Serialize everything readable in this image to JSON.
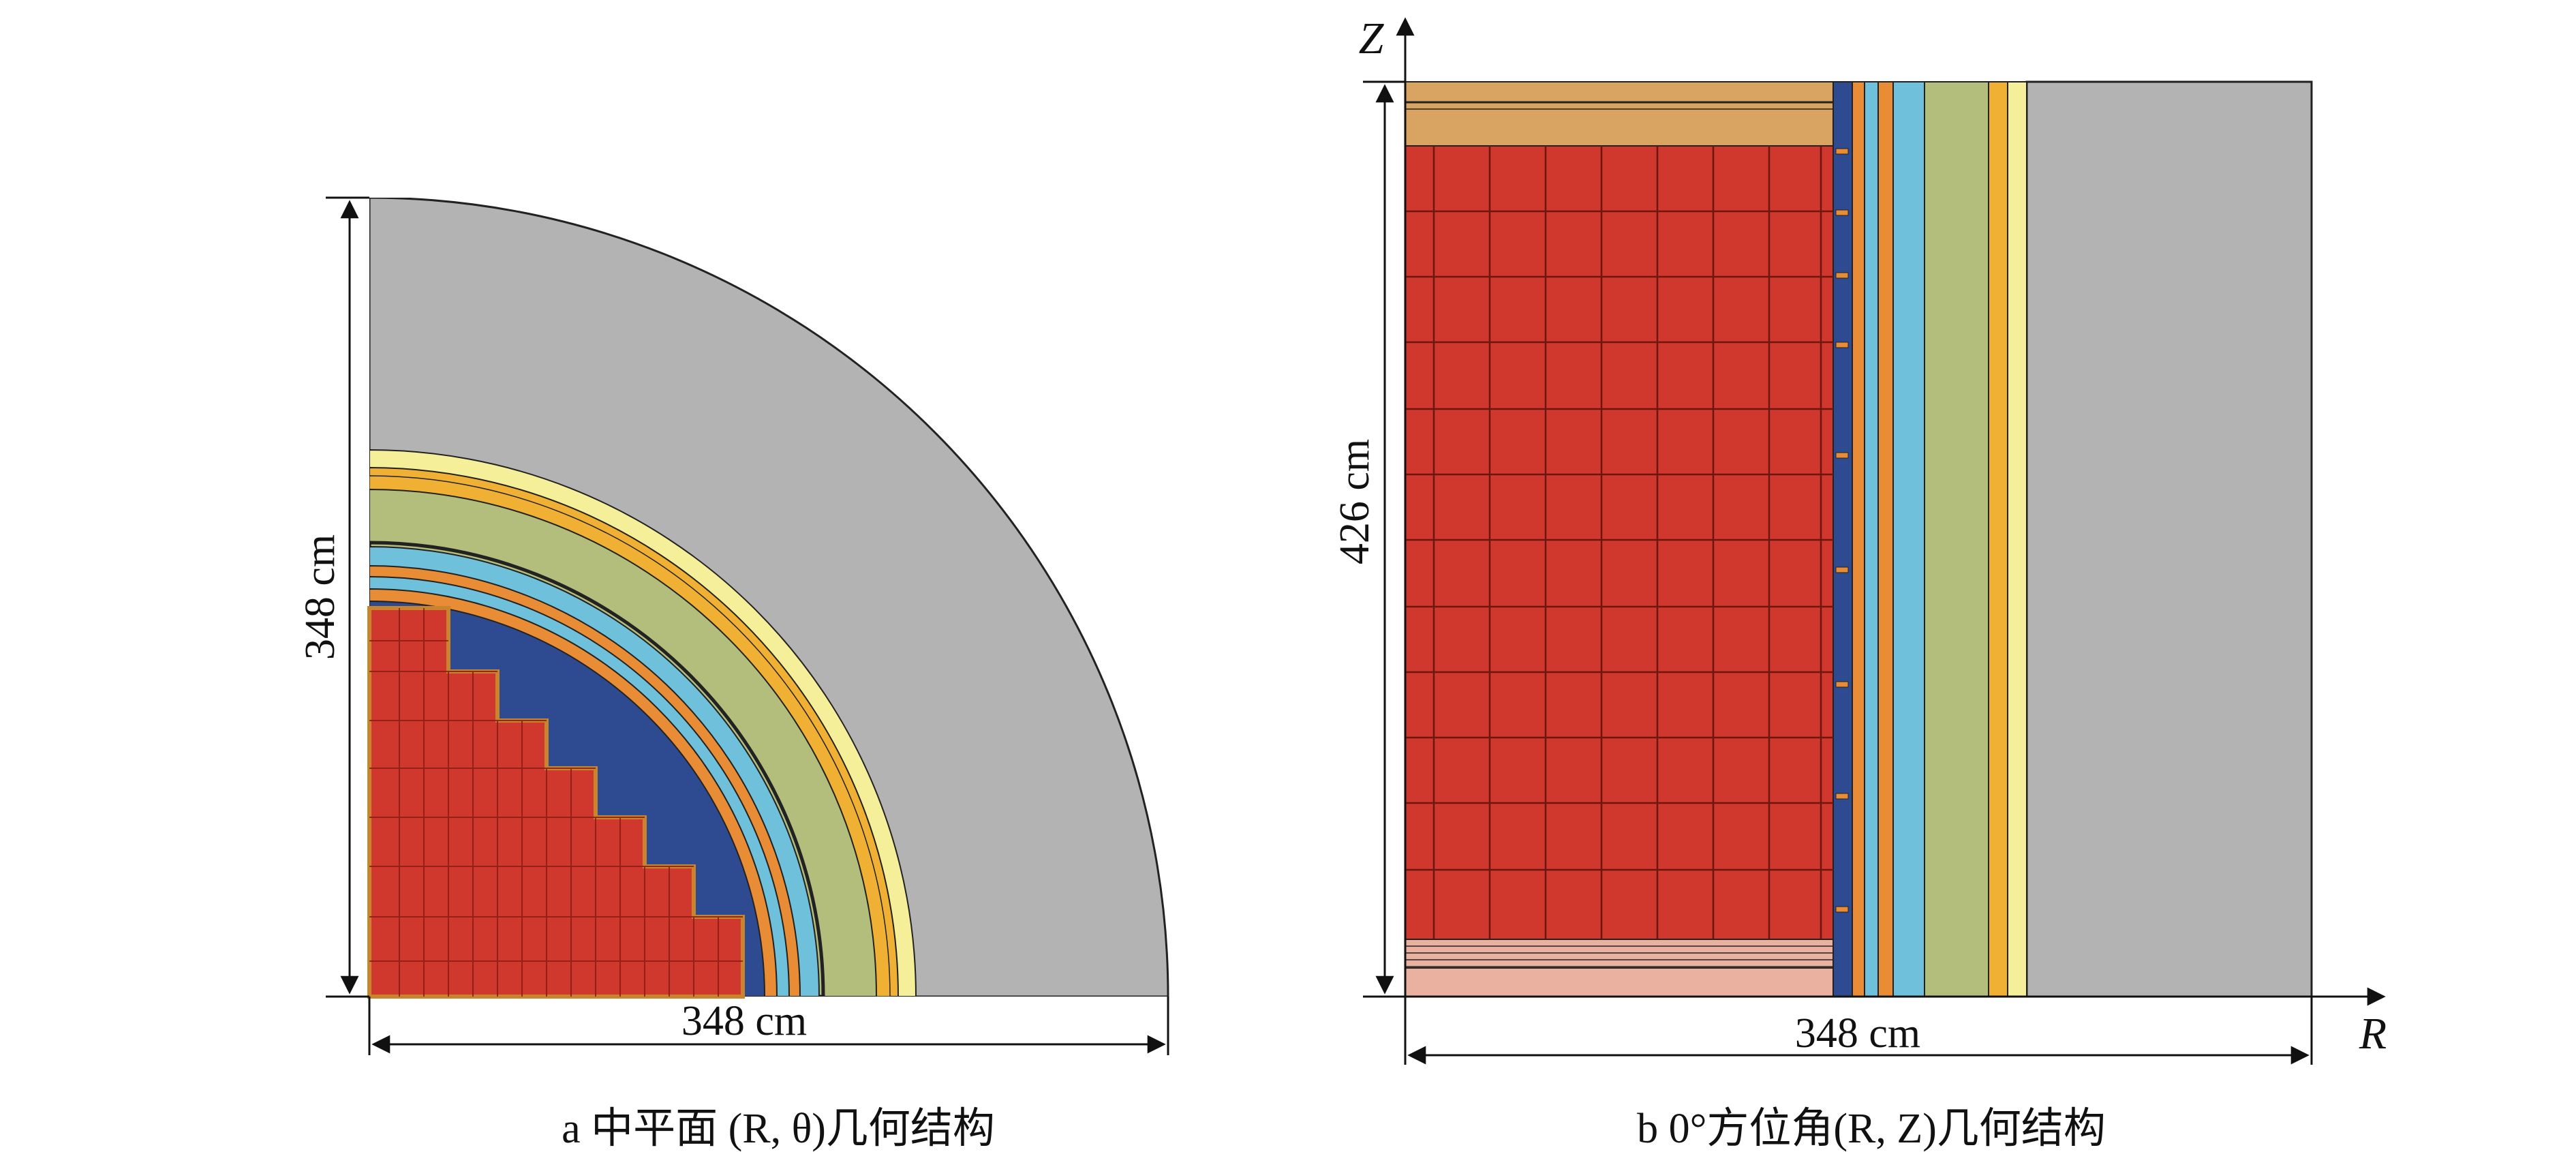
{
  "panel_a": {
    "dim_horizontal": "348 cm",
    "dim_vertical": "348 cm",
    "caption": "a  中平面 (R, θ)几何结构"
  },
  "panel_b": {
    "dim_horizontal": "348 cm",
    "dim_vertical": "426 cm",
    "axis_z": "Z",
    "axis_r": "R",
    "caption": "b  0°方位角(R, Z)几何结构"
  },
  "colors": {
    "fuel": "#d0372d",
    "fuel_line": "#8a1d14",
    "blue_region": "#2e4b92",
    "orange": "#e88c35",
    "cyan": "#6fc0da",
    "green": "#b3bd7c",
    "gold": "#f0b034",
    "pale_yellow": "#f6ef9a",
    "gray": "#b3b3b3",
    "tan": "#d9a462",
    "pink": "#eab0a0",
    "outline": "#222222"
  }
}
